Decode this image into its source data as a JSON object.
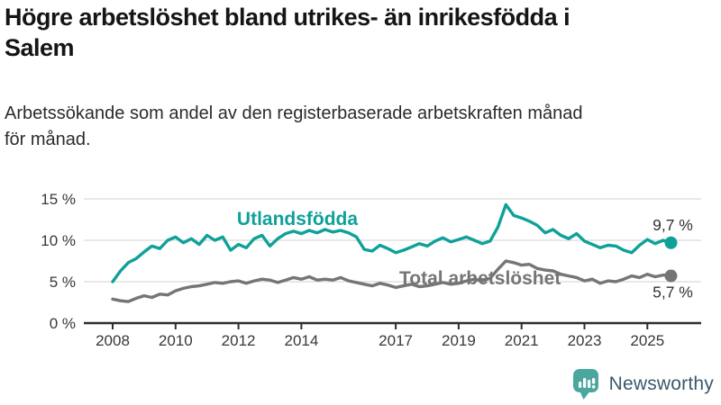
{
  "header": {
    "title_lines": [
      "Högre arbetslöshet bland utrikes- än inrikesfödda i",
      "Salem"
    ],
    "subtitle_lines": [
      "Arbetssökande som andel av den registerbaserade arbetskraften månad",
      "för månad."
    ]
  },
  "chart_data": {
    "type": "line",
    "title": "Högre arbetslöshet bland utrikes- än inrikesfödda i Salem",
    "subtitle": "Arbetssökande som andel av den registerbaserade arbetskraften månad för månad.",
    "x_start": 2008,
    "points_per_year": 4,
    "xlim": [
      2007.2,
      2026.2
    ],
    "ylim": [
      0,
      16
    ],
    "grid": "horizontal",
    "x_ticks": [
      2008,
      2010,
      2012,
      2014,
      2017,
      2019,
      2021,
      2023,
      2025
    ],
    "x_tick_labels": [
      "2008",
      "2010",
      "2012",
      "2014",
      "2017",
      "2019",
      "2021",
      "2023",
      "2025"
    ],
    "y_ticks": [
      0,
      5,
      10,
      15
    ],
    "y_tick_labels": [
      "0 %",
      "5 %",
      "10 %",
      "15 %"
    ],
    "legend_position": "inline-labels",
    "series": [
      {
        "name": "Utlandsfödda",
        "color": "#0fa199",
        "end_label": "9,7 %",
        "end_value": 9.7,
        "values": [
          5.0,
          6.3,
          7.3,
          7.8,
          8.6,
          9.3,
          9.0,
          10.0,
          10.4,
          9.7,
          10.2,
          9.5,
          10.6,
          10.0,
          10.4,
          8.8,
          9.5,
          9.1,
          10.2,
          10.6,
          9.3,
          10.2,
          10.8,
          11.1,
          10.8,
          11.2,
          10.9,
          11.3,
          11.0,
          11.2,
          10.9,
          10.4,
          8.9,
          8.7,
          9.4,
          9.0,
          8.5,
          8.8,
          9.2,
          9.6,
          9.3,
          9.9,
          10.3,
          9.8,
          10.1,
          10.4,
          10.0,
          9.6,
          9.9,
          11.6,
          14.3,
          13.0,
          12.7,
          12.3,
          11.8,
          10.9,
          11.3,
          10.6,
          10.2,
          10.8,
          9.9,
          9.5,
          9.1,
          9.4,
          9.3,
          8.8,
          8.5,
          9.4,
          10.1,
          9.6,
          10.0,
          9.7
        ]
      },
      {
        "name": "Total arbetslöshet",
        "color": "#757575",
        "end_label": "5,7 %",
        "end_value": 5.7,
        "values": [
          2.9,
          2.7,
          2.6,
          3.0,
          3.3,
          3.1,
          3.5,
          3.4,
          3.9,
          4.2,
          4.4,
          4.5,
          4.7,
          4.9,
          4.8,
          5.0,
          5.1,
          4.8,
          5.1,
          5.3,
          5.2,
          4.9,
          5.2,
          5.5,
          5.3,
          5.6,
          5.2,
          5.3,
          5.2,
          5.5,
          5.1,
          4.9,
          4.7,
          4.5,
          4.8,
          4.6,
          4.3,
          4.5,
          4.7,
          4.4,
          4.5,
          4.7,
          4.9,
          4.7,
          4.8,
          5.1,
          5.3,
          5.1,
          5.4,
          6.5,
          7.5,
          7.3,
          7.0,
          7.1,
          6.6,
          6.4,
          6.3,
          5.9,
          5.7,
          5.5,
          5.1,
          5.3,
          4.8,
          5.1,
          5.0,
          5.3,
          5.7,
          5.5,
          5.9,
          5.6,
          5.8,
          5.7
        ]
      }
    ],
    "colors": {
      "grid": "#d9d9d9",
      "axis": "#2e2e2e",
      "tick_text": "#383838",
      "annotation_text": "#333333"
    }
  },
  "footer": {
    "brand": "Newsworthy",
    "brand_color": "#3b596b",
    "logo_icon": "bar-chart-speech-bubble",
    "logo_icon_color": "#4ba79e"
  }
}
